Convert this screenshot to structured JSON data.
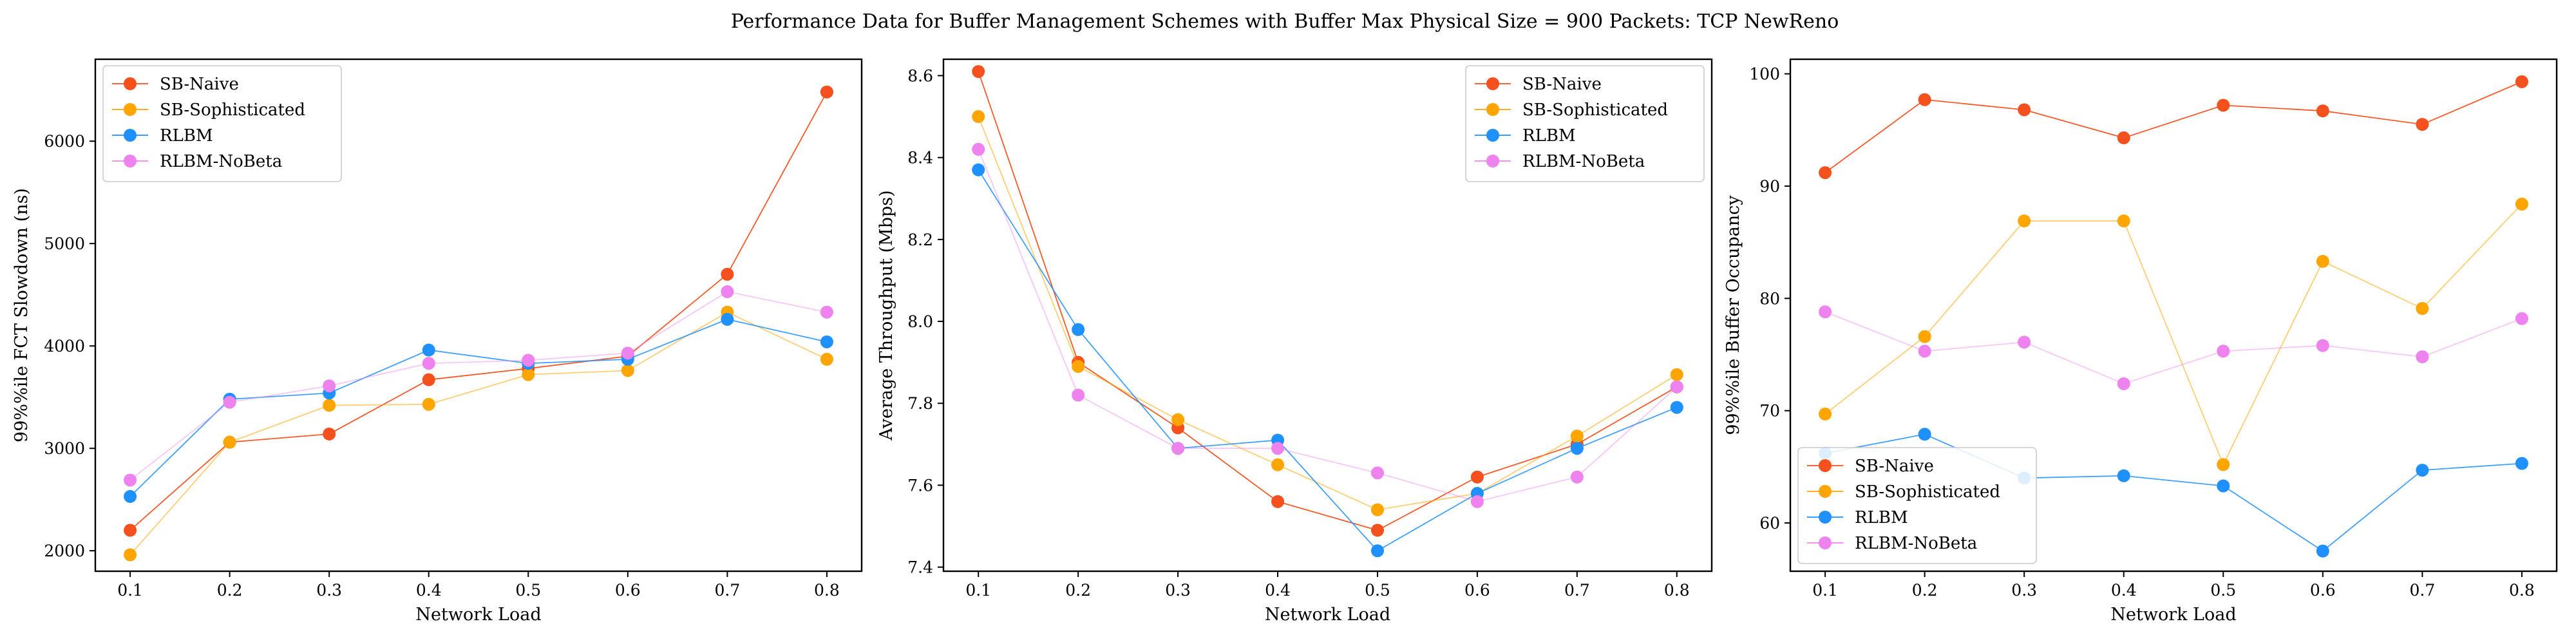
{
  "figure": {
    "title": "Performance Data for Buffer Management Schemes with Buffer Max Physical Size = 900 Packets: TCP NewReno"
  },
  "colors": {
    "SB-Naive": "#f4511e",
    "SB-Sophisticated": "#ffa500",
    "RLBM": "#1e90ff",
    "RLBM-NoBeta": "#ee82ee"
  },
  "chart_data": [
    {
      "type": "line",
      "xlabel": "Network Load",
      "ylabel": "99%%ile FCT Slowdown (ns)",
      "x": [
        0.1,
        0.2,
        0.3,
        0.4,
        0.5,
        0.6,
        0.7,
        0.8
      ],
      "xticks": [
        "0.1",
        "0.2",
        "0.3",
        "0.4",
        "0.5",
        "0.6",
        "0.7",
        "0.8"
      ],
      "xlim": [
        0.065,
        0.835
      ],
      "ylim": [
        1800,
        6800
      ],
      "yticks": [
        2000,
        3000,
        4000,
        5000,
        6000
      ],
      "yticklabels": [
        "2000",
        "3000",
        "4000",
        "5000",
        "6000"
      ],
      "legend_position": "upper left",
      "series": [
        {
          "name": "SB-Naive",
          "values": [
            2200,
            3060,
            3140,
            3670,
            3780,
            3900,
            4700,
            6480
          ]
        },
        {
          "name": "SB-Sophisticated",
          "values": [
            1960,
            3060,
            3420,
            3430,
            3720,
            3760,
            4330,
            3870
          ]
        },
        {
          "name": "RLBM",
          "values": [
            2530,
            3480,
            3540,
            3960,
            3830,
            3870,
            4260,
            4040
          ]
        },
        {
          "name": "RLBM-NoBeta",
          "values": [
            2690,
            3450,
            3610,
            3830,
            3860,
            3930,
            4530,
            4330
          ]
        }
      ]
    },
    {
      "type": "line",
      "xlabel": "Network Load",
      "ylabel": "Average Throughput (Mbps)",
      "x": [
        0.1,
        0.2,
        0.3,
        0.4,
        0.5,
        0.6,
        0.7,
        0.8
      ],
      "xticks": [
        "0.1",
        "0.2",
        "0.3",
        "0.4",
        "0.5",
        "0.6",
        "0.7",
        "0.8"
      ],
      "xlim": [
        0.065,
        0.835
      ],
      "ylim": [
        7.39,
        8.64
      ],
      "yticks": [
        7.4,
        7.6,
        7.8,
        8.0,
        8.2,
        8.4,
        8.6
      ],
      "yticklabels": [
        "7.4",
        "7.6",
        "7.8",
        "8.0",
        "8.2",
        "8.4",
        "8.6"
      ],
      "legend_position": "upper right",
      "series": [
        {
          "name": "SB-Naive",
          "values": [
            8.61,
            7.9,
            7.74,
            7.56,
            7.49,
            7.62,
            7.7,
            7.84
          ]
        },
        {
          "name": "SB-Sophisticated",
          "values": [
            8.5,
            7.89,
            7.76,
            7.65,
            7.54,
            7.58,
            7.72,
            7.87
          ]
        },
        {
          "name": "RLBM",
          "values": [
            8.37,
            7.98,
            7.69,
            7.71,
            7.44,
            7.58,
            7.69,
            7.79
          ]
        },
        {
          "name": "RLBM-NoBeta",
          "values": [
            8.42,
            7.82,
            7.69,
            7.69,
            7.63,
            7.56,
            7.62,
            7.84
          ]
        }
      ]
    },
    {
      "type": "line",
      "xlabel": "Network Load",
      "ylabel": "99%%ile Buffer Occupancy",
      "x": [
        0.1,
        0.2,
        0.3,
        0.4,
        0.5,
        0.6,
        0.7,
        0.8
      ],
      "xticks": [
        "0.1",
        "0.2",
        "0.3",
        "0.4",
        "0.5",
        "0.6",
        "0.7",
        "0.8"
      ],
      "xlim": [
        0.065,
        0.835
      ],
      "ylim": [
        55.7,
        101.3
      ],
      "yticks": [
        60,
        70,
        80,
        90,
        100
      ],
      "yticklabels": [
        "60",
        "70",
        "80",
        "90",
        "100"
      ],
      "legend_position": "lower left",
      "series": [
        {
          "name": "SB-Naive",
          "values": [
            91.2,
            97.7,
            96.8,
            94.3,
            97.2,
            96.7,
            95.5,
            99.3
          ]
        },
        {
          "name": "SB-Sophisticated",
          "values": [
            69.7,
            76.6,
            86.9,
            86.9,
            65.2,
            83.3,
            79.1,
            88.4
          ]
        },
        {
          "name": "RLBM",
          "values": [
            66.2,
            67.9,
            64.0,
            64.2,
            63.3,
            57.5,
            64.7,
            65.3
          ]
        },
        {
          "name": "RLBM-NoBeta",
          "values": [
            78.8,
            75.3,
            76.1,
            72.4,
            75.3,
            75.8,
            74.8,
            78.2
          ]
        }
      ]
    }
  ]
}
